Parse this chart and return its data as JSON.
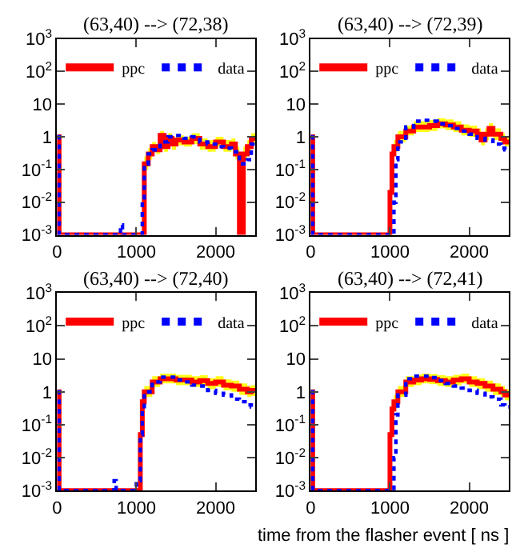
{
  "chart_data": [
    {
      "type": "step",
      "title": "(63,40) --> (72,38)",
      "xlim": [
        0,
        2500
      ],
      "xticks": [
        0,
        1000,
        2000
      ],
      "ylim": [
        0.001,
        1000
      ],
      "log": true,
      "legend": "top",
      "yticks": [
        {
          "value": 0.001,
          "label": "10$^{-3}$"
        },
        {
          "value": 0.01,
          "label": "10$^{-2}$"
        },
        {
          "value": 0.1,
          "label": "10$^{-1}$"
        },
        1,
        10,
        {
          "value": 100,
          "label": "10$^{2}$"
        },
        {
          "value": 1000,
          "label": "10$^{3}$"
        }
      ],
      "series": [
        {
          "name": "ppc",
          "color": "#ff0000",
          "line_style": "solid",
          "x": [
            0,
            25,
            1100,
            1150,
            1200,
            1250,
            1300,
            1350,
            1400,
            1450,
            1500,
            1600,
            1700,
            1800,
            1900,
            2000,
            2100,
            2200,
            2250,
            2300,
            2350,
            2400,
            2450,
            2500
          ],
          "values": [
            1,
            0.001,
            0.15,
            0.3,
            0.5,
            0.4,
            1.1,
            0.5,
            0.9,
            0.6,
            0.8,
            0.7,
            0.9,
            0.6,
            0.5,
            0.7,
            0.5,
            0.6,
            0.3,
            0.001,
            0.3,
            0.5,
            0.9,
            0.9
          ],
          "upper": [
            1,
            0.001,
            0.25,
            0.45,
            0.7,
            0.6,
            1.5,
            0.8,
            1.3,
            0.9,
            1.1,
            1.0,
            1.3,
            0.9,
            0.8,
            1.0,
            0.8,
            0.9,
            0.5,
            0.001,
            0.5,
            0.8,
            1.3,
            1.3
          ],
          "lower": [
            1,
            0.001,
            0.1,
            0.2,
            0.35,
            0.3,
            0.8,
            0.35,
            0.6,
            0.4,
            0.55,
            0.5,
            0.6,
            0.4,
            0.35,
            0.5,
            0.35,
            0.4,
            0.2,
            0.001,
            0.2,
            0.35,
            0.6,
            0.6
          ]
        },
        {
          "name": "data",
          "color": "#0000ff",
          "line_style": "dotted",
          "x": [
            0,
            25,
            800,
            825,
            1075,
            1100,
            1150,
            1200,
            1300,
            1400,
            1500,
            1600,
            1700,
            1800,
            1900,
            2000,
            2100,
            2200,
            2300,
            2400,
            2450,
            2500
          ],
          "values": [
            1,
            0.001,
            0.002,
            0.001,
            0.01,
            0.15,
            0.3,
            0.4,
            0.7,
            1.0,
            1.1,
            0.9,
            1.0,
            0.7,
            0.6,
            0.5,
            0.45,
            0.35,
            0.15,
            0.2,
            0.6,
            0.6
          ]
        }
      ]
    },
    {
      "type": "step",
      "title": "(63,40) --> (72,39)",
      "xlim": [
        0,
        2500
      ],
      "xticks": [
        0,
        1000,
        2000
      ],
      "ylim": [
        0.001,
        1000
      ],
      "log": true,
      "legend": "top",
      "yticks": [
        {
          "value": 0.001,
          "label": "10$^{-3}$"
        },
        {
          "value": 0.01,
          "label": "10$^{-2}$"
        },
        {
          "value": 0.1,
          "label": "10$^{-1}$"
        },
        1,
        10,
        {
          "value": 100,
          "label": "10$^{2}$"
        },
        {
          "value": 1000,
          "label": "10$^{3}$"
        }
      ],
      "series": [
        {
          "name": "ppc",
          "color": "#ff0000",
          "line_style": "solid",
          "x": [
            0,
            25,
            1000,
            1025,
            1050,
            1100,
            1200,
            1300,
            1400,
            1500,
            1600,
            1700,
            1800,
            1900,
            2000,
            2100,
            2150,
            2200,
            2250,
            2300,
            2400,
            2450,
            2500
          ],
          "values": [
            1,
            0.001,
            0.02,
            0.3,
            0.5,
            1,
            1.5,
            2,
            2,
            2.2,
            2.5,
            2.3,
            2,
            1.6,
            1.5,
            1.2,
            0.8,
            1.2,
            1.8,
            1.2,
            0.9,
            0.7,
            0.7
          ],
          "upper": [
            1,
            0.001,
            0.05,
            0.5,
            0.8,
            1.5,
            2.2,
            3,
            3,
            3.3,
            3.7,
            3.4,
            3,
            2.4,
            2.2,
            1.8,
            1.2,
            1.8,
            2.6,
            1.8,
            1.3,
            1.0,
            1.0
          ],
          "lower": [
            1,
            0.001,
            0.01,
            0.2,
            0.35,
            0.7,
            1.1,
            1.4,
            1.4,
            1.5,
            1.8,
            1.6,
            1.4,
            1.1,
            1.0,
            0.8,
            0.55,
            0.8,
            1.2,
            0.8,
            0.6,
            0.5,
            0.5
          ]
        },
        {
          "name": "data",
          "color": "#0000ff",
          "line_style": "dotted",
          "x": [
            0,
            25,
            1000,
            1050,
            1075,
            1100,
            1200,
            1300,
            1400,
            1500,
            1600,
            1700,
            1800,
            1900,
            2000,
            2100,
            2200,
            2300,
            2400,
            2450,
            2500
          ],
          "values": [
            1,
            0.001,
            0.001,
            0.01,
            0.2,
            0.7,
            2,
            3,
            3.2,
            3,
            2.5,
            2.2,
            1.8,
            1.5,
            1.2,
            0.9,
            0.8,
            0.6,
            0.45,
            0.4,
            0.4
          ]
        }
      ]
    },
    {
      "type": "step",
      "title": "(63,40) --> (72,40)",
      "xlim": [
        0,
        2500
      ],
      "xticks": [
        0,
        1000,
        2000
      ],
      "ylim": [
        0.001,
        1000
      ],
      "log": true,
      "legend": "top",
      "yticks": [
        {
          "value": 0.001,
          "label": "10$^{-3}$"
        },
        {
          "value": 0.01,
          "label": "10$^{-2}$"
        },
        {
          "value": 0.1,
          "label": "10$^{-1}$"
        },
        1,
        10,
        {
          "value": 100,
          "label": "10$^{2}$"
        },
        {
          "value": 1000,
          "label": "10$^{3}$"
        }
      ],
      "series": [
        {
          "name": "ppc",
          "color": "#ff0000",
          "line_style": "solid",
          "x": [
            0,
            25,
            1050,
            1075,
            1100,
            1200,
            1300,
            1400,
            1500,
            1600,
            1700,
            1800,
            1900,
            2000,
            2100,
            2200,
            2300,
            2400,
            2450,
            2500
          ],
          "values": [
            1,
            0.001,
            0.05,
            0.5,
            1,
            2,
            2.5,
            2.5,
            2.3,
            2.3,
            2,
            2.2,
            1.8,
            2,
            1.6,
            1.5,
            1.2,
            1,
            1.1,
            1.1
          ],
          "upper": [
            1,
            0.001,
            0.1,
            0.8,
            1.5,
            3,
            3.6,
            3.6,
            3.3,
            3.3,
            3,
            3.2,
            2.6,
            3,
            2.4,
            2.2,
            1.8,
            1.5,
            1.6,
            1.6
          ],
          "lower": [
            1,
            0.001,
            0.03,
            0.35,
            0.7,
            1.4,
            1.8,
            1.8,
            1.6,
            1.6,
            1.4,
            1.5,
            1.2,
            1.4,
            1.1,
            1.0,
            0.8,
            0.7,
            0.75,
            0.75
          ]
        },
        {
          "name": "data",
          "color": "#0000ff",
          "line_style": "dotted",
          "x": [
            0,
            25,
            720,
            745,
            1000,
            1050,
            1075,
            1100,
            1200,
            1300,
            1400,
            1500,
            1600,
            1700,
            1800,
            1900,
            2000,
            2100,
            2200,
            2300,
            2400,
            2450,
            2500
          ],
          "values": [
            1,
            0.001,
            0.002,
            0.001,
            0.002,
            0.05,
            0.3,
            1,
            2,
            2.8,
            2.8,
            2.3,
            2,
            1.6,
            1.5,
            1.1,
            0.9,
            0.8,
            0.6,
            0.5,
            0.4,
            0.35,
            0.35
          ]
        }
      ]
    },
    {
      "type": "step",
      "title": "(63,40) --> (72,41)",
      "xlabel": "time from the flasher event [ ns ]",
      "xlim": [
        0,
        2500
      ],
      "xticks": [
        0,
        1000,
        2000
      ],
      "ylim": [
        0.001,
        1000
      ],
      "log": true,
      "legend": "top",
      "yticks": [
        {
          "value": 0.001,
          "label": "10$^{-3}$"
        },
        {
          "value": 0.01,
          "label": "10$^{-2}$"
        },
        {
          "value": 0.1,
          "label": "10$^{-1}$"
        },
        1,
        10,
        {
          "value": 100,
          "label": "10$^{2}$"
        },
        {
          "value": 1000,
          "label": "10$^{3}$"
        }
      ],
      "series": [
        {
          "name": "ppc",
          "color": "#ff0000",
          "line_style": "solid",
          "x": [
            0,
            25,
            1000,
            1025,
            1050,
            1100,
            1200,
            1300,
            1400,
            1500,
            1600,
            1700,
            1800,
            1900,
            2000,
            2100,
            2200,
            2300,
            2400,
            2450,
            2500
          ],
          "values": [
            1,
            0.001,
            0.05,
            0.3,
            0.5,
            1,
            2,
            2.3,
            2.5,
            2.4,
            2.2,
            2,
            2.3,
            2.5,
            2,
            1.8,
            1.5,
            1.2,
            1,
            0.8,
            0.8
          ],
          "upper": [
            1,
            0.001,
            0.1,
            0.5,
            0.8,
            1.5,
            3,
            3.3,
            3.6,
            3.5,
            3.2,
            3,
            3.3,
            3.6,
            3,
            2.6,
            2.2,
            1.8,
            1.5,
            1.2,
            1.2
          ],
          "lower": [
            1,
            0.001,
            0.03,
            0.2,
            0.35,
            0.7,
            1.4,
            1.6,
            1.8,
            1.7,
            1.5,
            1.4,
            1.6,
            1.8,
            1.4,
            1.2,
            1.0,
            0.8,
            0.7,
            0.55,
            0.55
          ]
        },
        {
          "name": "data",
          "color": "#0000ff",
          "line_style": "dotted",
          "x": [
            0,
            25,
            1050,
            1075,
            1100,
            1200,
            1300,
            1400,
            1500,
            1600,
            1700,
            1800,
            1900,
            2000,
            2100,
            2200,
            2300,
            2400,
            2450,
            2500
          ],
          "values": [
            1,
            0.001,
            0.01,
            0.2,
            0.8,
            2.5,
            3,
            3,
            2.7,
            2.2,
            1.8,
            1.5,
            1.3,
            1.1,
            0.9,
            0.7,
            0.6,
            0.4,
            0.35,
            0.35
          ]
        }
      ]
    }
  ]
}
